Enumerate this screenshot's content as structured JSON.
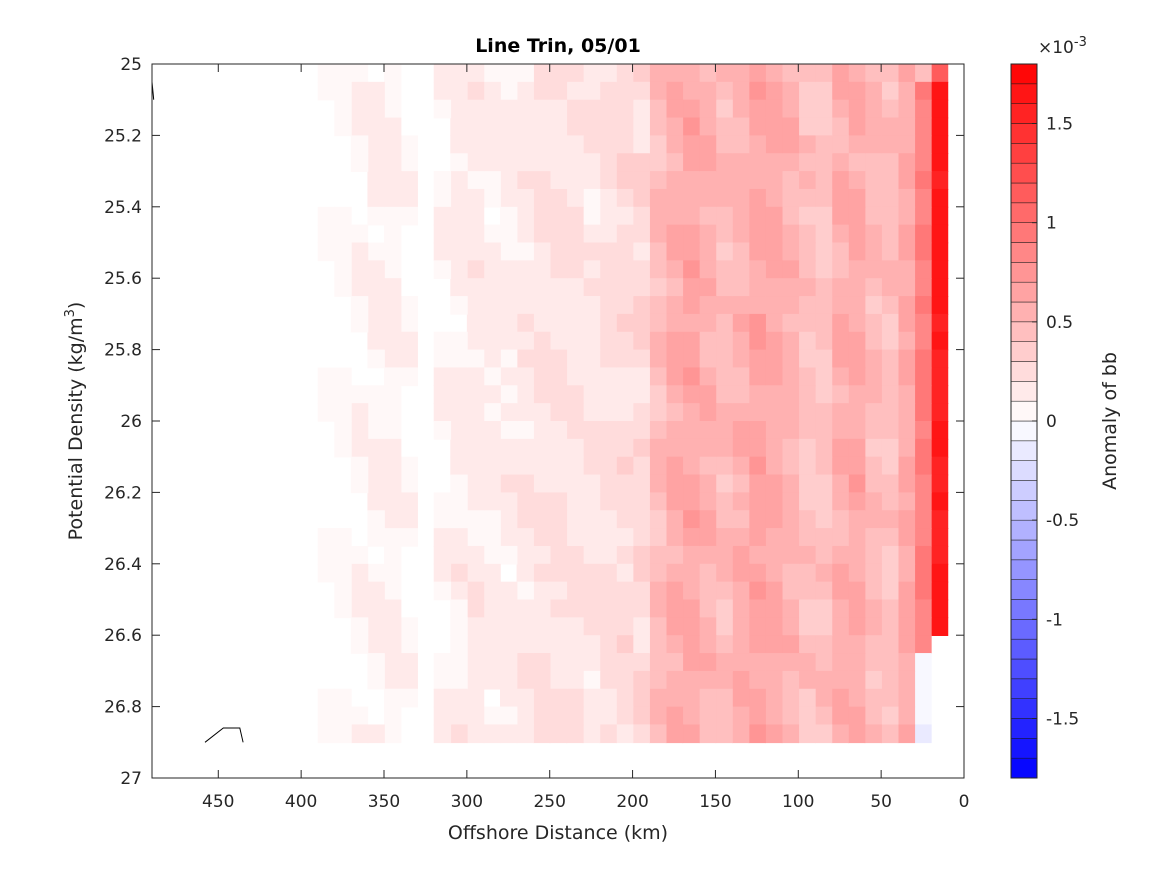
{
  "chart_data": {
    "type": "heatmap",
    "subtype": "filled-contour",
    "title": "Line Trin, 05/01",
    "xlabel": "Offshore Distance (km)",
    "ylabel_main": "Potential Density (kg/m",
    "ylabel_sup": "3",
    "ylabel_end": ")",
    "colorbar_label": "Anomaly of bb",
    "colorbar_exponent_base": "×10",
    "colorbar_exponent_power": "-3",
    "x_reversed": true,
    "y_reversed": true,
    "xlim": [
      0,
      490
    ],
    "ylim": [
      25,
      27
    ],
    "xticks": [
      450,
      400,
      350,
      300,
      250,
      200,
      150,
      100,
      50,
      0
    ],
    "yticks": [
      25,
      25.2,
      25.4,
      25.6,
      25.8,
      26,
      26.2,
      26.4,
      26.6,
      26.8,
      27
    ],
    "ytick_labels": [
      "25",
      "25.2",
      "25.4",
      "25.6",
      "25.8",
      "26",
      "26.2",
      "26.4",
      "26.6",
      "26.8",
      "27"
    ],
    "clim": [
      -1.8,
      1.8
    ],
    "colorbar_ticks": [
      1.5,
      1,
      0.5,
      0,
      -0.5,
      -1,
      -1.5
    ],
    "colorbar_tick_labels": [
      "1.5",
      "1",
      "0.5",
      "0",
      "-0.5",
      "-1",
      "-1.5"
    ],
    "colorbar_levels": 36,
    "data_extent": {
      "x": [
        10,
        490
      ],
      "y": [
        25,
        26.9
      ]
    },
    "profile_x": [
      490,
      460,
      430,
      400,
      375,
      350,
      325,
      300,
      275,
      250,
      225,
      200,
      185,
      170,
      160,
      150,
      140,
      130,
      120,
      110,
      100,
      90,
      80,
      70,
      60,
      50,
      40,
      30,
      20,
      15,
      10
    ],
    "profile_values": [
      0,
      0,
      0,
      0,
      0.05,
      0.12,
      0.02,
      0.15,
      0.12,
      0.2,
      0.17,
      0.25,
      0.42,
      0.55,
      0.62,
      0.58,
      0.5,
      0.62,
      0.55,
      0.5,
      0.55,
      0.45,
      0.52,
      0.6,
      0.45,
      0.4,
      0.5,
      0.7,
      1.1,
      1.6,
      1.75
    ],
    "line_contour": {
      "x": [
        458,
        447,
        437,
        435
      ],
      "y": [
        26.9,
        26.86,
        26.86,
        26.9
      ]
    },
    "edge_contour": {
      "x": [
        490,
        490,
        489
      ],
      "y": [
        25.0,
        25.05,
        25.1
      ]
    }
  }
}
